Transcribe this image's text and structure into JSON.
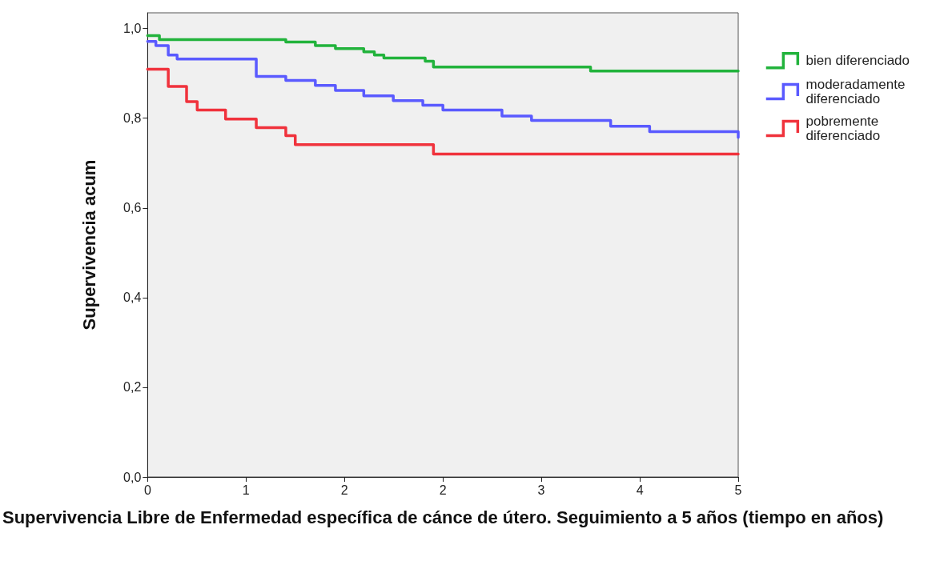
{
  "chart_data": {
    "type": "step",
    "xlabel": "Supervivencia Libre de Enfermedad específica de cánce de útero. Seguimiento a 5 años (tiempo en años)",
    "ylabel": "Supervivencia acum",
    "xlim": [
      0,
      5
    ],
    "xticks": [
      0,
      {
        "value": 0.833,
        "label": "1"
      },
      {
        "value": 1.667,
        "label": "2"
      },
      {
        "value": 2.5,
        "label": "2"
      },
      {
        "value": 3.333,
        "label": "3"
      },
      {
        "value": 4.167,
        "label": "4"
      },
      5
    ],
    "ylim": [
      0,
      1.035
    ],
    "yticks": [
      {
        "value": 0,
        "label": "0,0"
      },
      {
        "value": 0.2,
        "label": "0,2"
      },
      {
        "value": 0.4,
        "label": "0,4"
      },
      {
        "value": 0.6,
        "label": "0,6"
      },
      {
        "value": 0.8,
        "label": "0,8"
      },
      {
        "value": 1,
        "label": "1,0"
      }
    ],
    "grid": false,
    "legend": "right",
    "marker": "none",
    "line_style": "solid",
    "series": [
      {
        "name": "bien diferenciado",
        "color": "#22b33c",
        "x": [
          0,
          0.1,
          1.17,
          1.42,
          1.59,
          1.83,
          1.92,
          2.0,
          2.35,
          2.42,
          3.75,
          5
        ],
        "values": [
          0.984,
          0.975,
          0.97,
          0.962,
          0.955,
          0.948,
          0.941,
          0.934,
          0.927,
          0.914,
          0.905,
          0.905
        ]
      },
      {
        "name": "moderadamente diferenciado",
        "color": "#5a5aff",
        "x": [
          0,
          0.07,
          0.175,
          0.25,
          0.92,
          1.17,
          1.42,
          1.59,
          1.83,
          2.08,
          2.33,
          2.5,
          3.0,
          3.25,
          3.92,
          4.25,
          5
        ],
        "values": [
          0.971,
          0.962,
          0.941,
          0.932,
          0.893,
          0.884,
          0.873,
          0.862,
          0.85,
          0.839,
          0.829,
          0.818,
          0.805,
          0.795,
          0.782,
          0.77,
          0.757
        ]
      },
      {
        "name": "pobremente diferenciado",
        "color": "#f0323c",
        "x": [
          0,
          0.175,
          0.33,
          0.42,
          0.66,
          0.92,
          1.17,
          1.25,
          2.42,
          5
        ],
        "values": [
          0.909,
          0.871,
          0.837,
          0.818,
          0.798,
          0.779,
          0.761,
          0.741,
          0.72,
          0.72
        ]
      }
    ]
  }
}
